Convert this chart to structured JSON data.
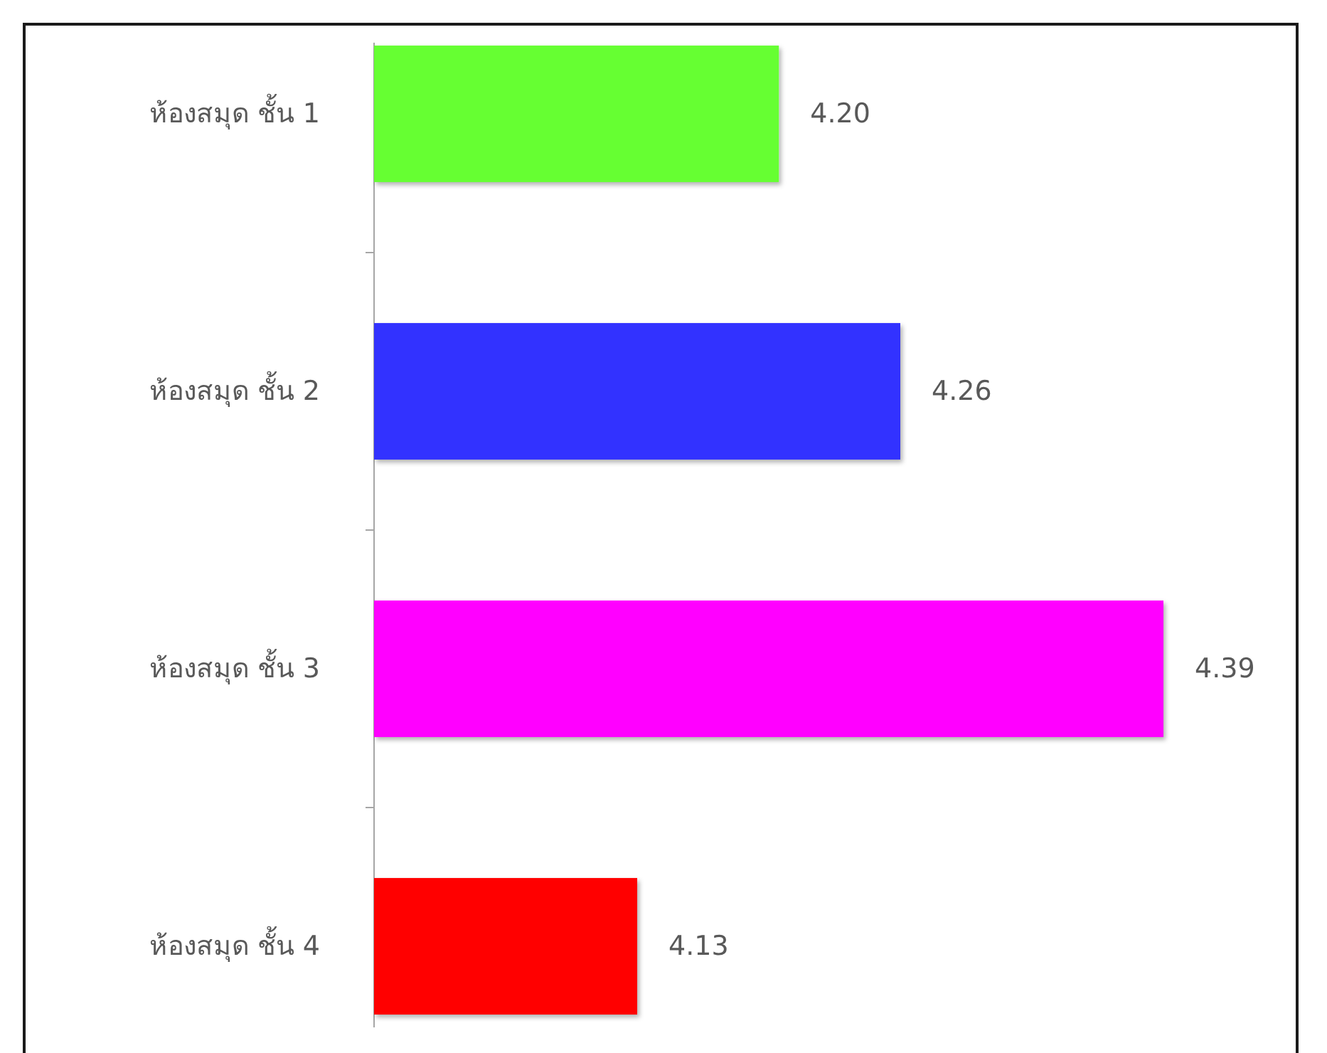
{
  "chart_data": {
    "type": "bar",
    "orientation": "horizontal",
    "categories": [
      "ห้องสมุด ชั้น 1",
      "ห้องสมุด ชั้น 2",
      "ห้องสมุด ชั้น 3",
      "ห้องสมุด ชั้น 4"
    ],
    "values": [
      4.2,
      4.26,
      4.39,
      4.13
    ],
    "colors": [
      "#66ff33",
      "#3333ff",
      "#ff00ff",
      "#ff0000"
    ],
    "value_labels": [
      "4.20",
      "4.26",
      "4.39",
      "4.13"
    ],
    "xlim": [
      4,
      4.39
    ],
    "tick_labels": "y"
  }
}
